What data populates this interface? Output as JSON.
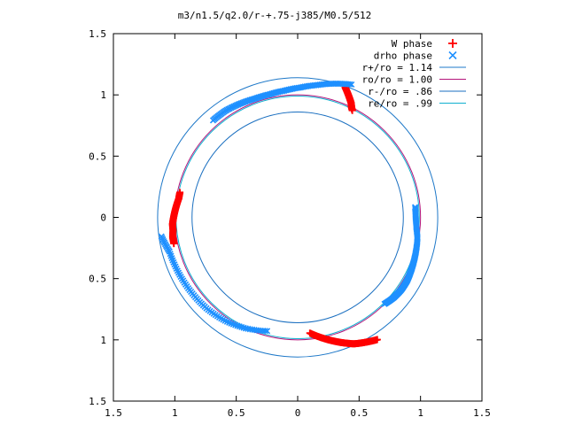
{
  "chart_data": {
    "type": "scatter",
    "title": "m3/n1.5/q2.0/r-+.75-j385/M0.5/512",
    "xlabel": "",
    "ylabel": "",
    "xlim": [
      -1.5,
      1.5
    ],
    "ylim": [
      -1.5,
      1.5
    ],
    "x_tick_values": [
      -1.5,
      -1,
      -0.5,
      0,
      0.5,
      1,
      1.5
    ],
    "x_tick_labels": [
      "1.5",
      "1",
      "0.5",
      "0",
      "0.5",
      "1",
      "1.5"
    ],
    "y_tick_values": [
      1.5,
      1,
      0.5,
      0,
      -0.5,
      -1,
      -1.5
    ],
    "y_tick_labels": [
      "1.5",
      "1",
      "0.5",
      "0",
      "0.5",
      "1",
      "1.5"
    ],
    "grid": false,
    "legend_position": "top-right",
    "colors": {
      "w_phase": "#ff0000",
      "drho_phase": "#1e90ff",
      "r_plus": "#1e78c8",
      "r_o": "#b4147a",
      "r_minus": "#1a6fc0",
      "r_e": "#10b0d0"
    },
    "series": [
      {
        "name": "W phase",
        "marker": "plus",
        "segments": [
          {
            "angles_deg": [
              168,
              171,
              174,
              177,
              180,
              183,
              186,
              189,
              192
            ],
            "radius": [
              0.98,
              0.98,
              0.99,
              1.0,
              1.01,
              1.02,
              1.02,
              1.03,
              1.03
            ]
          },
          {
            "angles_deg": [
              63,
              64,
              65,
              66,
              67,
              68,
              69,
              70
            ],
            "radius": [
              0.98,
              1.0,
              1.03,
              1.05,
              1.07,
              1.09,
              1.11,
              1.13
            ]
          },
          {
            "angles_deg": [
              -84,
              -81,
              -78,
              -75,
              -72,
              -69,
              -66,
              -63,
              -60,
              -57
            ],
            "radius": [
              0.95,
              0.98,
              1.01,
              1.04,
              1.07,
              1.1,
              1.13,
              1.15,
              1.17,
              1.19
            ]
          }
        ]
      },
      {
        "name": "drho phase",
        "marker": "cross",
        "segments": [
          {
            "angles_deg": [
              5,
              0,
              -5,
              -10,
              -15,
              -20,
              -25,
              -30,
              -35,
              -40,
              -45
            ],
            "radius": [
              0.96,
              0.96,
              0.97,
              0.99,
              1.0,
              1.01,
              1.02,
              1.03,
              1.03,
              1.02,
              1.0
            ]
          },
          {
            "angles_deg": [
              68,
              75,
              82,
              89,
              96,
              103,
              110,
              117,
              124,
              131
            ],
            "radius": [
              1.17,
              1.13,
              1.09,
              1.06,
              1.04,
              1.03,
              1.03,
              1.04,
              1.05,
              1.05
            ]
          },
          {
            "angles_deg": [
              -105,
              -115,
              -125,
              -135,
              -145,
              -155,
              -165,
              -172
            ],
            "radius": [
              0.96,
              1.0,
              1.03,
              1.05,
              1.06,
              1.07,
              1.08,
              1.12
            ]
          }
        ]
      },
      {
        "name": "r+/ro = 1.14",
        "type": "circle",
        "radius": 1.14
      },
      {
        "name": "ro/ro = 1.00",
        "type": "circle",
        "radius": 1.0
      },
      {
        "name": "r-/ro = .86",
        "type": "circle",
        "radius": 0.86
      },
      {
        "name": "re/ro = .99",
        "type": "circle",
        "radius": 0.99
      }
    ]
  }
}
